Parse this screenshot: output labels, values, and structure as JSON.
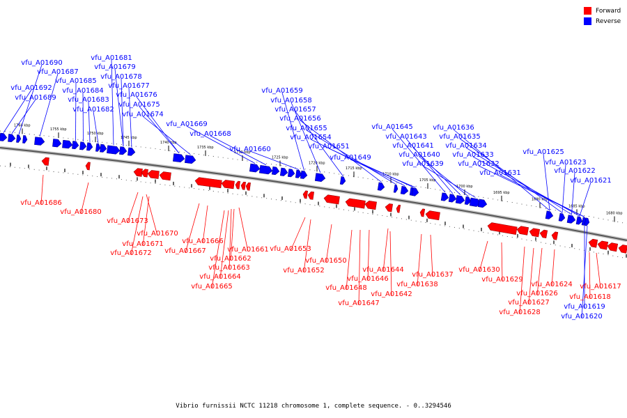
{
  "legend": [
    {
      "label": "Forward",
      "color": "#ff0000"
    },
    {
      "label": "Reverse",
      "color": "#0000ff"
    }
  ],
  "caption": "Vibrio furnissii NCTC 11218 chromosome 1, complete sequence. - 0..3294546",
  "ticks": [
    "1760 kbp",
    "1755 kbp",
    "1750 kbp",
    "1745 kbp",
    "1740 kbp",
    "1735 kbp",
    "1730 kbp",
    "1725 kbp",
    "1720 kbp",
    "1715 kbp",
    "1710 kbp",
    "1705 kbp",
    "1700 kbp",
    "1695 kbp",
    "1690 kbp",
    "1685 kbp",
    "1680 kbp"
  ],
  "reverse_labels": [
    "vfu_A01690",
    "vfu_A01687",
    "vfu_A01685",
    "vfu_A01692",
    "vfu_A01689",
    "vfu_A01681",
    "vfu_A01679",
    "vfu_A01678",
    "vfu_A01677",
    "vfu_A01684",
    "vfu_A01683",
    "vfu_A01676",
    "vfu_A01675",
    "vfu_A01682",
    "vfu_A01674",
    "vfu_A01669",
    "vfu_A01668",
    "vfu_A01659",
    "vfu_A01658",
    "vfu_A01657",
    "vfu_A01656",
    "vfu_A01655",
    "vfu_A01654",
    "vfu_A01660",
    "vfu_A01651",
    "vfu_A01649",
    "vfu_A01645",
    "vfu_A01643",
    "vfu_A01641",
    "vfu_A01640",
    "vfu_A01639",
    "vfu_A01636",
    "vfu_A01635",
    "vfu_A01634",
    "vfu_A01633",
    "vfu_A01632",
    "vfu_A01631",
    "vfu_A01625",
    "vfu_A01623",
    "vfu_A01622",
    "vfu_A01621",
    "vfu_A01619",
    "vfu_A01620"
  ],
  "forward_labels": [
    "vfu_A01686",
    "vfu_A01680",
    "vfu_A01673",
    "vfu_A01670",
    "vfu_A01671",
    "vfu_A01672",
    "vfu_A01666",
    "vfu_A01667",
    "vfu_A01661",
    "vfu_A01662",
    "vfu_A01663",
    "vfu_A01664",
    "vfu_A01665",
    "vfu_A01653",
    "vfu_A01652",
    "vfu_A01650",
    "vfu_A01644",
    "vfu_A01646",
    "vfu_A01648",
    "vfu_A01647",
    "vfu_A01642",
    "vfu_A01638",
    "vfu_A01637",
    "vfu_A01630",
    "vfu_A01629",
    "vfu_A01624",
    "vfu_A01626",
    "vfu_A01627",
    "vfu_A01628",
    "vfu_A01617",
    "vfu_A01618"
  ]
}
